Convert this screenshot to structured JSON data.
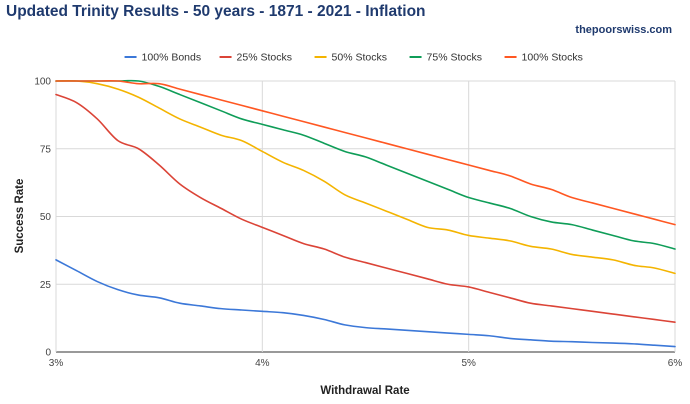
{
  "header": {
    "title": "Updated Trinity Results - 50 years - 1871 - 2021 - Inflation",
    "site": "thepoorswiss.com"
  },
  "chart_data": {
    "type": "line",
    "title": "Updated Trinity Results - 50 years - 1871 - 2021 - Inflation",
    "xlabel": "Withdrawal Rate",
    "ylabel": "Success Rate",
    "xlim": [
      3,
      6
    ],
    "ylim": [
      0,
      100
    ],
    "x_ticks": [
      {
        "value": 3,
        "label": "3%"
      },
      {
        "value": 4,
        "label": "4%"
      },
      {
        "value": 5,
        "label": "5%"
      },
      {
        "value": 6,
        "label": "6%"
      }
    ],
    "y_ticks": [
      {
        "value": 0,
        "label": "0"
      },
      {
        "value": 25,
        "label": "25"
      },
      {
        "value": 50,
        "label": "50"
      },
      {
        "value": 75,
        "label": "75"
      },
      {
        "value": 100,
        "label": "100"
      }
    ],
    "grid": true,
    "legend_position": "top",
    "x": [
      3.0,
      3.1,
      3.2,
      3.3,
      3.4,
      3.5,
      3.6,
      3.7,
      3.8,
      3.9,
      4.0,
      4.1,
      4.2,
      4.3,
      4.4,
      4.5,
      4.6,
      4.7,
      4.8,
      4.9,
      5.0,
      5.1,
      5.2,
      5.3,
      5.4,
      5.5,
      5.6,
      5.7,
      5.8,
      5.9,
      6.0
    ],
    "series": [
      {
        "name": "100% Bonds",
        "color": "#3c78d8",
        "values": [
          34,
          30,
          26,
          23,
          21,
          20,
          18,
          17,
          16,
          15.5,
          15,
          14.5,
          13.5,
          12,
          10,
          9,
          8.5,
          8,
          7.5,
          7,
          6.5,
          6,
          5,
          4.5,
          4,
          3.8,
          3.5,
          3.3,
          3,
          2.5,
          2
        ]
      },
      {
        "name": "25% Stocks",
        "color": "#db4437",
        "values": [
          95,
          92,
          86,
          78,
          75,
          69,
          62,
          57,
          53,
          49,
          46,
          43,
          40,
          38,
          35,
          33,
          31,
          29,
          27,
          25,
          24,
          22,
          20,
          18,
          17,
          16,
          15,
          14,
          13,
          12,
          11
        ]
      },
      {
        "name": "50% Stocks",
        "color": "#f4b400",
        "values": [
          100,
          100,
          99,
          97,
          94,
          90,
          86,
          83,
          80,
          78,
          74,
          70,
          67,
          63,
          58,
          55,
          52,
          49,
          46,
          45,
          43,
          42,
          41,
          39,
          38,
          36,
          35,
          34,
          32,
          31,
          29
        ]
      },
      {
        "name": "75% Stocks",
        "color": "#0f9d58",
        "values": [
          100,
          100,
          100,
          100,
          100,
          98,
          95,
          92,
          89,
          86,
          84,
          82,
          80,
          77,
          74,
          72,
          69,
          66,
          63,
          60,
          57,
          55,
          53,
          50,
          48,
          47,
          45,
          43,
          41,
          40,
          38
        ]
      },
      {
        "name": "100% Stocks",
        "color": "#ff5722",
        "values": [
          100,
          100,
          100,
          100,
          99,
          99,
          97,
          95,
          93,
          91,
          89,
          87,
          85,
          83,
          81,
          79,
          77,
          75,
          73,
          71,
          69,
          67,
          65,
          62,
          60,
          57,
          55,
          53,
          51,
          49,
          47
        ]
      }
    ]
  }
}
